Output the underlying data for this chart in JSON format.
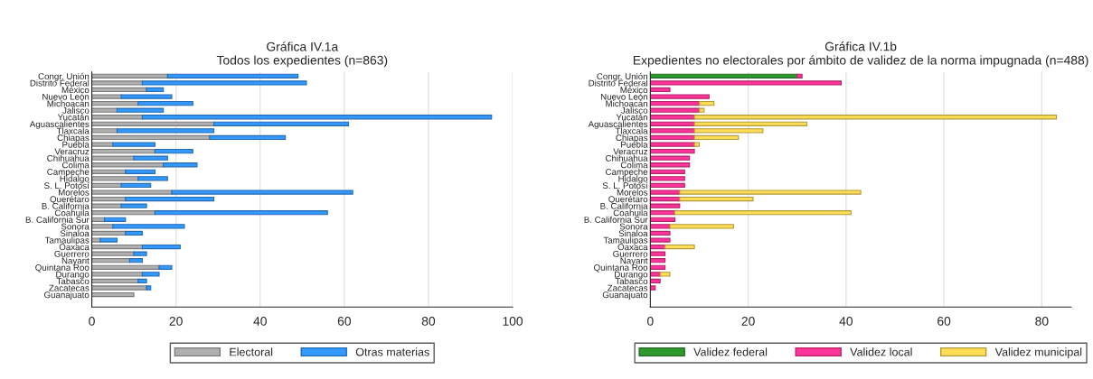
{
  "chart_data": [
    {
      "type": "bar",
      "title": "Gráfica IV.1a",
      "subtitle": "Todos los expedientes (n=863)",
      "orientation": "horizontal",
      "stacked": true,
      "grid": "x",
      "legend": "bottom",
      "categories": [
        "Congr. Unión",
        "Distrito Federal",
        "México",
        "Nuevo León",
        "Michoacán",
        "Jalisco",
        "Yucatán",
        "Aguascalientes",
        "Tlaxcala",
        "Chiapas",
        "Puebla",
        "Veracruz",
        "Chihuahua",
        "Colima",
        "Campeche",
        "Hidalgo",
        "S. L. Potosí",
        "Morelos",
        "Querétaro",
        "B. California",
        "Coahuila",
        "B. California Sur",
        "Sonora",
        "Sinaloa",
        "Tamaulipas",
        "Oaxaca",
        "Guerrero",
        "Nayarit",
        "Quintana Roo",
        "Durango",
        "Tabasco",
        "Zacatecas",
        "Guanajuato"
      ],
      "series": [
        {
          "name": "Electoral",
          "color": "#b0b0b0",
          "values": [
            18,
            12,
            13,
            7,
            11,
            6,
            12,
            29,
            6,
            28,
            5,
            15,
            10,
            17,
            8,
            11,
            7,
            19,
            8,
            7,
            15,
            3,
            5,
            8,
            2,
            12,
            10,
            9,
            16,
            12,
            11,
            13,
            10
          ]
        },
        {
          "name": "Otras materias",
          "color": "#3399ff",
          "values": [
            31,
            39,
            4,
            12,
            13,
            11,
            83,
            32,
            23,
            18,
            10,
            9,
            8,
            8,
            7,
            7,
            7,
            43,
            21,
            6,
            41,
            5,
            17,
            4,
            4,
            9,
            3,
            3,
            3,
            4,
            2,
            1,
            0
          ]
        }
      ],
      "xlim": [
        0,
        100
      ],
      "xticks": [
        0,
        20,
        40,
        60,
        80,
        100
      ]
    },
    {
      "type": "bar",
      "title": "Gráfica IV.1b",
      "subtitle": "Expedientes no electorales por ámbito de validez de la norma impugnada (n=488)",
      "orientation": "horizontal",
      "stacked": true,
      "grid": "x",
      "legend": "bottom",
      "categories": [
        "Congr. Unión",
        "Distrito Federal",
        "México",
        "Nuevo León",
        "Michoacán",
        "Jalisco",
        "Yucatán",
        "Aguascalientes",
        "Tlaxcala",
        "Chiapas",
        "Puebla",
        "Veracruz",
        "Chihuahua",
        "Colima",
        "Campeche",
        "Hidalgo",
        "S. L. Potosí",
        "Morelos",
        "Querétaro",
        "B. California",
        "Coahuila",
        "B. California Sur",
        "Sonora",
        "Sinaloa",
        "Tamaulipas",
        "Oaxaca",
        "Guerrero",
        "Nayarit",
        "Quintana Roo",
        "Durango",
        "Tabasco",
        "Zacatecas",
        "Guanajuato"
      ],
      "series": [
        {
          "name": "Validez federal",
          "color": "#2e9a2e",
          "values": [
            30,
            0,
            0,
            0,
            0,
            0,
            0,
            0,
            0,
            0,
            0,
            0,
            0,
            0,
            0,
            0,
            0,
            0,
            0,
            0,
            0,
            0,
            0,
            0,
            0,
            0,
            0,
            0,
            0,
            0,
            0,
            0,
            0
          ]
        },
        {
          "name": "Validez local",
          "color": "#ff3399",
          "values": [
            1,
            39,
            4,
            12,
            10,
            10,
            9,
            9,
            9,
            9,
            9,
            9,
            8,
            8,
            7,
            7,
            7,
            6,
            6,
            6,
            5,
            5,
            4,
            4,
            4,
            3,
            3,
            3,
            3,
            2,
            2,
            1,
            0
          ]
        },
        {
          "name": "Validez municipal",
          "color": "#ffdd55",
          "values": [
            0,
            0,
            0,
            0,
            3,
            1,
            74,
            23,
            14,
            9,
            1,
            0,
            0,
            0,
            0,
            0,
            0,
            37,
            15,
            0,
            36,
            0,
            13,
            0,
            0,
            6,
            0,
            0,
            0,
            2,
            0,
            0,
            0
          ]
        }
      ],
      "xlim": [
        0,
        86
      ],
      "xticks": [
        0,
        20,
        40,
        60,
        80
      ]
    }
  ]
}
